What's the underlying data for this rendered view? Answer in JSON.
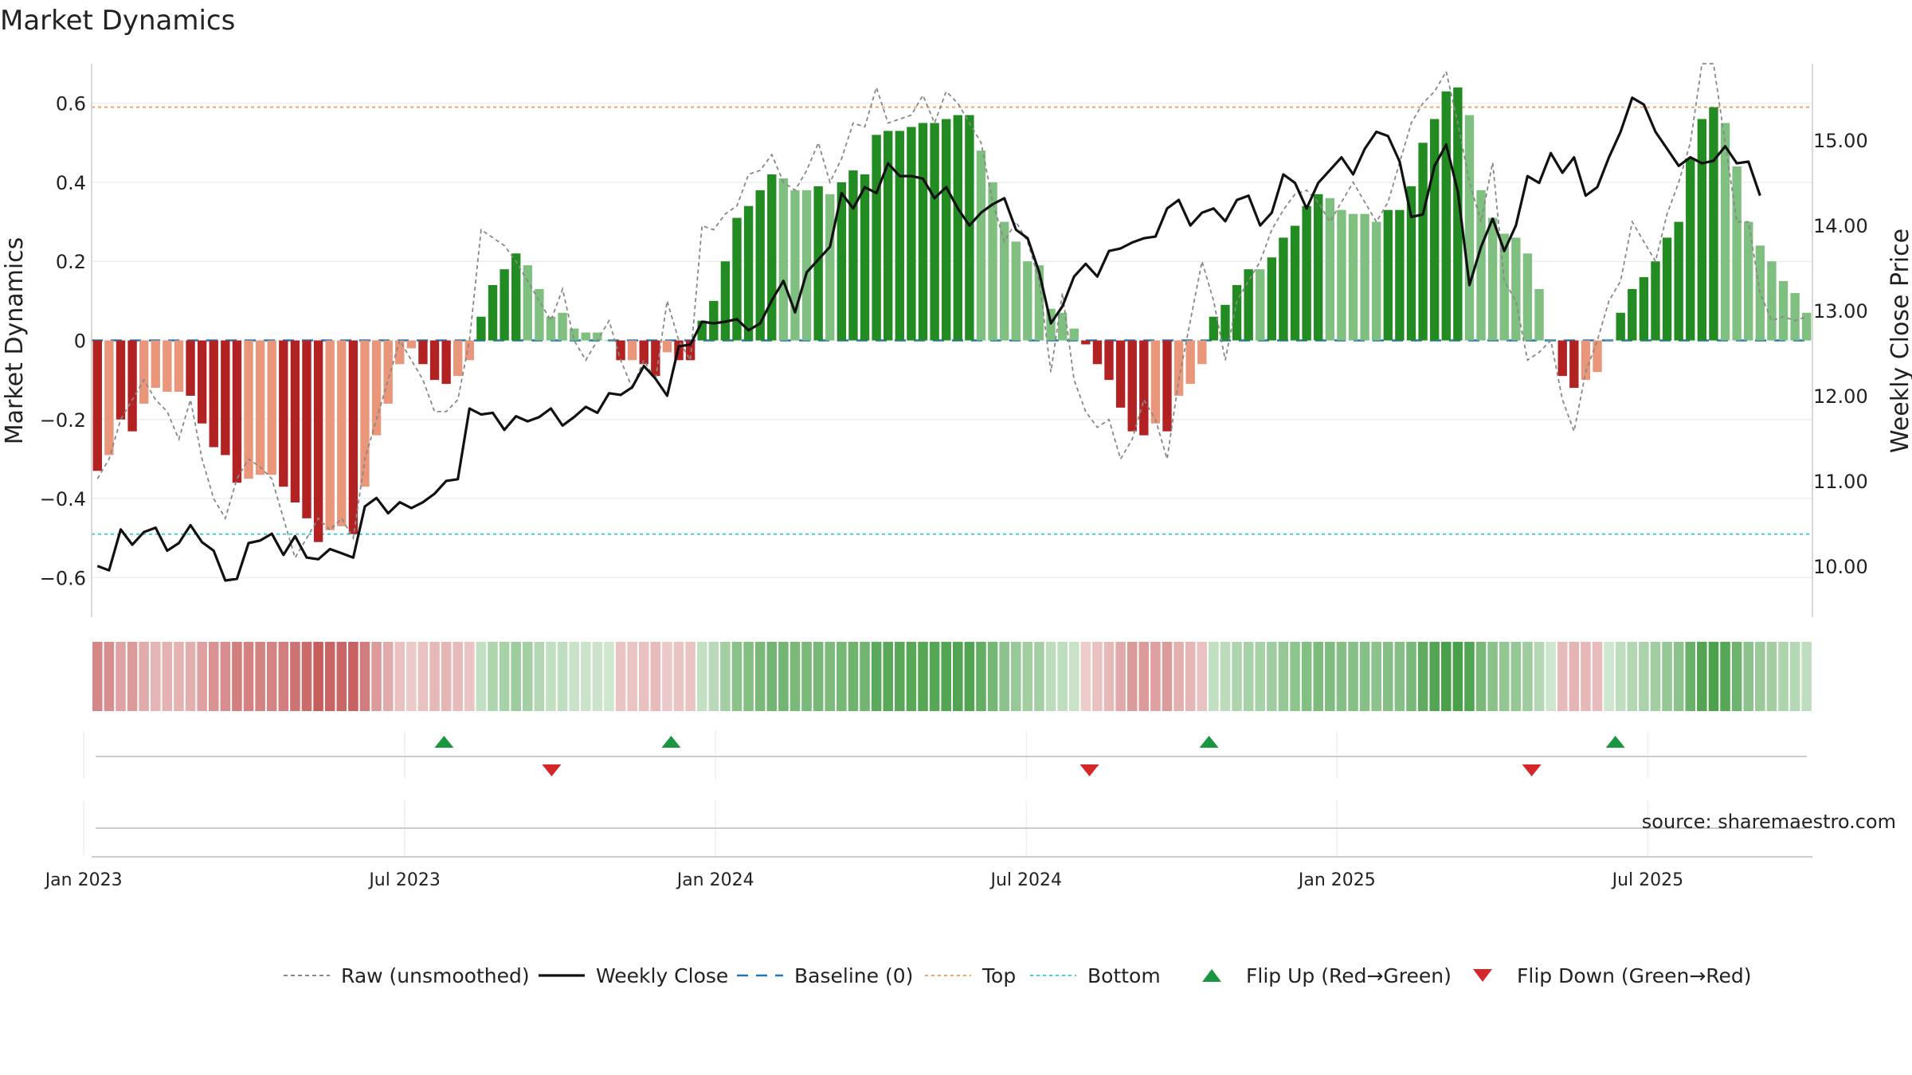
{
  "title": "Market Dynamics",
  "source": "source: sharemaestro.com",
  "colors": {
    "green_strong": "#228b22",
    "green_light": "#7fbf7f",
    "red_strong": "#b22222",
    "red_light": "#e9967a",
    "close_line": "#111111",
    "raw_line": "#888888",
    "baseline": "#1f77b4",
    "top_line": "#f4a460",
    "bottom_line": "#40d0d0",
    "flip_up": "#1a9641",
    "flip_down": "#d62728"
  },
  "chart_data": {
    "type": "bar",
    "left_axis": {
      "label": "Market Dynamics",
      "ylim": [
        -0.7,
        0.7
      ],
      "ticks": [
        -0.6,
        -0.4,
        -0.2,
        0,
        0.2,
        0.4,
        0.6
      ],
      "tick_labels": [
        "−0.6",
        "−0.4",
        "−0.2",
        "0",
        "0.2",
        "0.4",
        "0.6"
      ]
    },
    "right_axis": {
      "label": "Weekly Close Price",
      "ylim": [
        9.4,
        15.9
      ],
      "ticks": [
        10,
        11,
        12,
        13,
        14,
        15
      ],
      "tick_labels": [
        "10.00",
        "11.00",
        "12.00",
        "13.00",
        "14.00",
        "15.00"
      ]
    },
    "x_axis": {
      "start": "2023-01-02",
      "end": "2025-09-29",
      "tick_dates": [
        "2022-12-25",
        "2023-07-01",
        "2023-12-30",
        "2024-06-29",
        "2024-12-28",
        "2025-06-28"
      ],
      "tick_labels": [
        "Jan 2023",
        "Jul 2023",
        "Jan 2024",
        "Jul 2024",
        "Jan 2025",
        "Jul 2025"
      ]
    },
    "top_level": 0.59,
    "bottom_level": -0.49,
    "baseline": 0,
    "weeks": 144,
    "momentum": [
      -0.33,
      -0.29,
      -0.2,
      -0.23,
      -0.16,
      -0.12,
      -0.13,
      -0.13,
      -0.14,
      -0.21,
      -0.27,
      -0.29,
      -0.36,
      -0.35,
      -0.34,
      -0.34,
      -0.37,
      -0.41,
      -0.45,
      -0.51,
      -0.48,
      -0.47,
      -0.49,
      -0.37,
      -0.24,
      -0.16,
      -0.06,
      -0.02,
      -0.06,
      -0.1,
      -0.11,
      -0.09,
      -0.05,
      0.06,
      0.14,
      0.18,
      0.22,
      0.19,
      0.13,
      0.06,
      0.07,
      0.03,
      0.02,
      0.02,
      0.0,
      -0.05,
      -0.05,
      -0.06,
      -0.09,
      -0.03,
      -0.05,
      -0.05,
      0.05,
      0.1,
      0.2,
      0.31,
      0.34,
      0.38,
      0.42,
      0.41,
      0.38,
      0.38,
      0.39,
      0.37,
      0.4,
      0.43,
      0.42,
      0.52,
      0.53,
      0.53,
      0.54,
      0.55,
      0.55,
      0.56,
      0.57,
      0.57,
      0.48,
      0.4,
      0.3,
      0.25,
      0.2,
      0.19,
      0.08,
      0.07,
      0.03,
      -0.01,
      -0.06,
      -0.1,
      -0.17,
      -0.23,
      -0.24,
      -0.21,
      -0.23,
      -0.14,
      -0.11,
      -0.06,
      0.06,
      0.09,
      0.14,
      0.18,
      0.18,
      0.21,
      0.26,
      0.29,
      0.34,
      0.37,
      0.36,
      0.33,
      0.32,
      0.32,
      0.3,
      0.33,
      0.33,
      0.39,
      0.5,
      0.56,
      0.63,
      0.64,
      0.57,
      0.38,
      0.31,
      0.27,
      0.26,
      0.22,
      0.13,
      0.0,
      -0.09,
      -0.12,
      -0.1,
      -0.08,
      0.0,
      0.07,
      0.13,
      0.16,
      0.2,
      0.26,
      0.3,
      0.46,
      0.56,
      0.59,
      0.55,
      0.44,
      0.3,
      0.24,
      0.2,
      0.15,
      0.12,
      0.07
    ],
    "strength": [
      2,
      1,
      2,
      2,
      1,
      1,
      1,
      1,
      2,
      2,
      2,
      2,
      2,
      1,
      1,
      1,
      2,
      2,
      2,
      2,
      1,
      1,
      2,
      1,
      1,
      1,
      1,
      1,
      2,
      2,
      2,
      1,
      1,
      2,
      2,
      2,
      2,
      1,
      1,
      1,
      1,
      1,
      1,
      1,
      1,
      2,
      1,
      2,
      2,
      1,
      2,
      2,
      2,
      2,
      2,
      2,
      2,
      2,
      2,
      1,
      1,
      1,
      2,
      1,
      2,
      2,
      2,
      2,
      2,
      2,
      2,
      2,
      2,
      2,
      2,
      2,
      1,
      1,
      1,
      1,
      1,
      1,
      1,
      1,
      1,
      2,
      2,
      2,
      2,
      2,
      2,
      1,
      2,
      1,
      1,
      1,
      2,
      2,
      2,
      2,
      1,
      2,
      2,
      2,
      2,
      2,
      1,
      1,
      1,
      1,
      1,
      2,
      2,
      2,
      2,
      2,
      2,
      2,
      1,
      1,
      1,
      1,
      1,
      1,
      1,
      1,
      2,
      2,
      1,
      1,
      1,
      2,
      2,
      2,
      2,
      2,
      2,
      2,
      2,
      2,
      1,
      1,
      1,
      1,
      1,
      1,
      1,
      1
    ],
    "raw": [
      -0.35,
      -0.3,
      -0.2,
      -0.15,
      -0.1,
      -0.15,
      -0.18,
      -0.25,
      -0.15,
      -0.3,
      -0.4,
      -0.45,
      -0.35,
      -0.3,
      -0.32,
      -0.35,
      -0.45,
      -0.55,
      -0.5,
      -0.45,
      -0.48,
      -0.45,
      -0.5,
      -0.3,
      -0.2,
      -0.1,
      0.0,
      -0.05,
      -0.1,
      -0.18,
      -0.18,
      -0.15,
      0.0,
      0.28,
      0.26,
      0.24,
      0.2,
      0.15,
      0.1,
      0.05,
      0.13,
      0.0,
      -0.05,
      0.0,
      0.05,
      -0.05,
      -0.12,
      -0.05,
      -0.1,
      0.1,
      0.0,
      -0.05,
      0.29,
      0.28,
      0.32,
      0.34,
      0.42,
      0.43,
      0.47,
      0.4,
      0.38,
      0.43,
      0.5,
      0.4,
      0.46,
      0.55,
      0.54,
      0.64,
      0.55,
      0.56,
      0.57,
      0.62,
      0.55,
      0.63,
      0.6,
      0.55,
      0.5,
      0.35,
      0.25,
      0.3,
      0.25,
      0.15,
      -0.08,
      0.12,
      -0.1,
      -0.18,
      -0.22,
      -0.2,
      -0.3,
      -0.25,
      -0.15,
      -0.2,
      -0.3,
      -0.1,
      0.05,
      0.2,
      0.1,
      -0.05,
      0.1,
      0.15,
      0.2,
      0.28,
      0.33,
      0.37,
      0.38,
      0.35,
      0.3,
      0.35,
      0.4,
      0.35,
      0.3,
      0.35,
      0.45,
      0.55,
      0.6,
      0.63,
      0.68,
      0.55,
      0.4,
      0.3,
      0.45,
      0.15,
      0.1,
      -0.05,
      -0.03,
      0.0,
      -0.15,
      -0.23,
      -0.08,
      0.0,
      0.1,
      0.15,
      0.3,
      0.25,
      0.2,
      0.32,
      0.4,
      0.5,
      0.7,
      0.7,
      0.5,
      0.3,
      0.3,
      0.12,
      0.05,
      0.06,
      0.05,
      0.06
    ],
    "close": [
      10.0,
      9.95,
      10.43,
      10.25,
      10.4,
      10.45,
      10.18,
      10.27,
      10.48,
      10.28,
      10.18,
      9.83,
      9.85,
      10.27,
      10.3,
      10.38,
      10.13,
      10.35,
      10.1,
      10.08,
      10.2,
      10.15,
      10.1,
      10.7,
      10.8,
      10.62,
      10.75,
      10.68,
      10.75,
      10.85,
      11.0,
      11.02,
      11.85,
      11.78,
      11.8,
      11.6,
      11.76,
      11.7,
      11.75,
      11.85,
      11.65,
      11.75,
      11.87,
      11.8,
      12.03,
      12.01,
      12.1,
      12.35,
      12.2,
      12.0,
      12.58,
      12.6,
      12.87,
      12.85,
      12.87,
      12.9,
      12.77,
      12.85,
      13.12,
      13.35,
      12.98,
      13.45,
      13.6,
      13.75,
      14.38,
      14.2,
      14.45,
      14.38,
      14.73,
      14.58,
      14.58,
      14.55,
      14.32,
      14.45,
      14.2,
      14.0,
      14.15,
      14.25,
      14.32,
      13.95,
      13.85,
      13.45,
      12.85,
      13.05,
      13.4,
      13.55,
      13.4,
      13.7,
      13.73,
      13.8,
      13.85,
      13.87,
      14.2,
      14.3,
      14.0,
      14.15,
      14.2,
      14.05,
      14.3,
      14.35,
      14.0,
      14.15,
      14.6,
      14.5,
      14.2,
      14.5,
      14.65,
      14.8,
      14.6,
      14.9,
      15.1,
      15.05,
      14.75,
      14.1,
      14.13,
      14.7,
      14.95,
      14.4,
      13.3,
      13.75,
      14.08,
      13.7,
      14.0,
      14.58,
      14.5,
      14.85,
      14.62,
      14.8,
      14.35,
      14.45,
      14.8,
      15.1,
      15.5,
      15.42,
      15.1,
      14.9,
      14.7,
      14.8,
      14.73,
      14.76,
      14.93,
      14.73,
      14.75,
      14.35
    ],
    "flip_up": [
      "2023-07-24",
      "2023-12-04",
      "2024-10-14",
      "2025-06-09"
    ],
    "flip_down": [
      "2023-09-25",
      "2024-08-05",
      "2025-04-21"
    ],
    "legend": [
      {
        "label": "Raw (unsmoothed)",
        "kind": "dashed-gray"
      },
      {
        "label": "Weekly Close",
        "kind": "solid-black"
      },
      {
        "label": "Baseline (0)",
        "kind": "dashed-blue"
      },
      {
        "label": "Top",
        "kind": "dotted-orange"
      },
      {
        "label": "Bottom",
        "kind": "dotted-cyan"
      },
      {
        "label": "Flip Up (Red→Green)",
        "kind": "triangle-up"
      },
      {
        "label": "Flip Down (Green→Red)",
        "kind": "triangle-down"
      }
    ]
  }
}
